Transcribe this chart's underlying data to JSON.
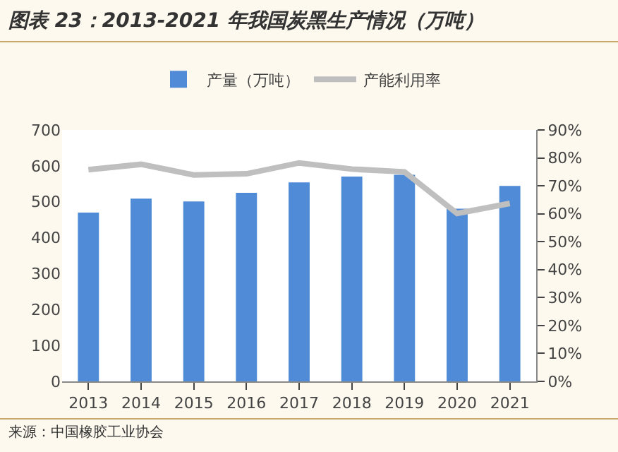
{
  "chart_data": {
    "type": "bar",
    "title": "图表 23：2013-2021 年我国炭黑生产情况（万吨）",
    "categories": [
      "2013",
      "2014",
      "2015",
      "2016",
      "2017",
      "2018",
      "2019",
      "2020",
      "2021"
    ],
    "series": [
      {
        "name": "产量（万吨）",
        "color": "#4f8bd6",
        "values": [
          470,
          509,
          501,
          525,
          554,
          570,
          575,
          481,
          544
        ]
      },
      {
        "name": "产能利用率",
        "type": "line",
        "axis": "y2",
        "color": "#bfbfbf",
        "values": [
          75.8,
          77.7,
          73.9,
          74.3,
          78.2,
          76,
          75,
          60.1,
          63.7
        ]
      }
    ],
    "ylim": [
      0,
      700
    ],
    "yticks": [
      0,
      100,
      200,
      300,
      400,
      500,
      600,
      700
    ],
    "y2lim": [
      0,
      90
    ],
    "y2ticks": [
      {
        "value": 0,
        "label": "0%"
      },
      {
        "value": 10,
        "label": "10%"
      },
      {
        "value": 20,
        "label": "20%"
      },
      {
        "value": 30,
        "label": "30%"
      },
      {
        "value": 40,
        "label": "40%"
      },
      {
        "value": 50,
        "label": "50%"
      },
      {
        "value": 60,
        "label": "60%"
      },
      {
        "value": 70,
        "label": "70%"
      },
      {
        "value": 80,
        "label": "80%"
      },
      {
        "value": 90,
        "label": "90%"
      }
    ],
    "grid": false,
    "legend": "top",
    "marker": "none",
    "line_style": "solid",
    "annotations": [
      "来源：中国橡胶工业协会"
    ]
  }
}
